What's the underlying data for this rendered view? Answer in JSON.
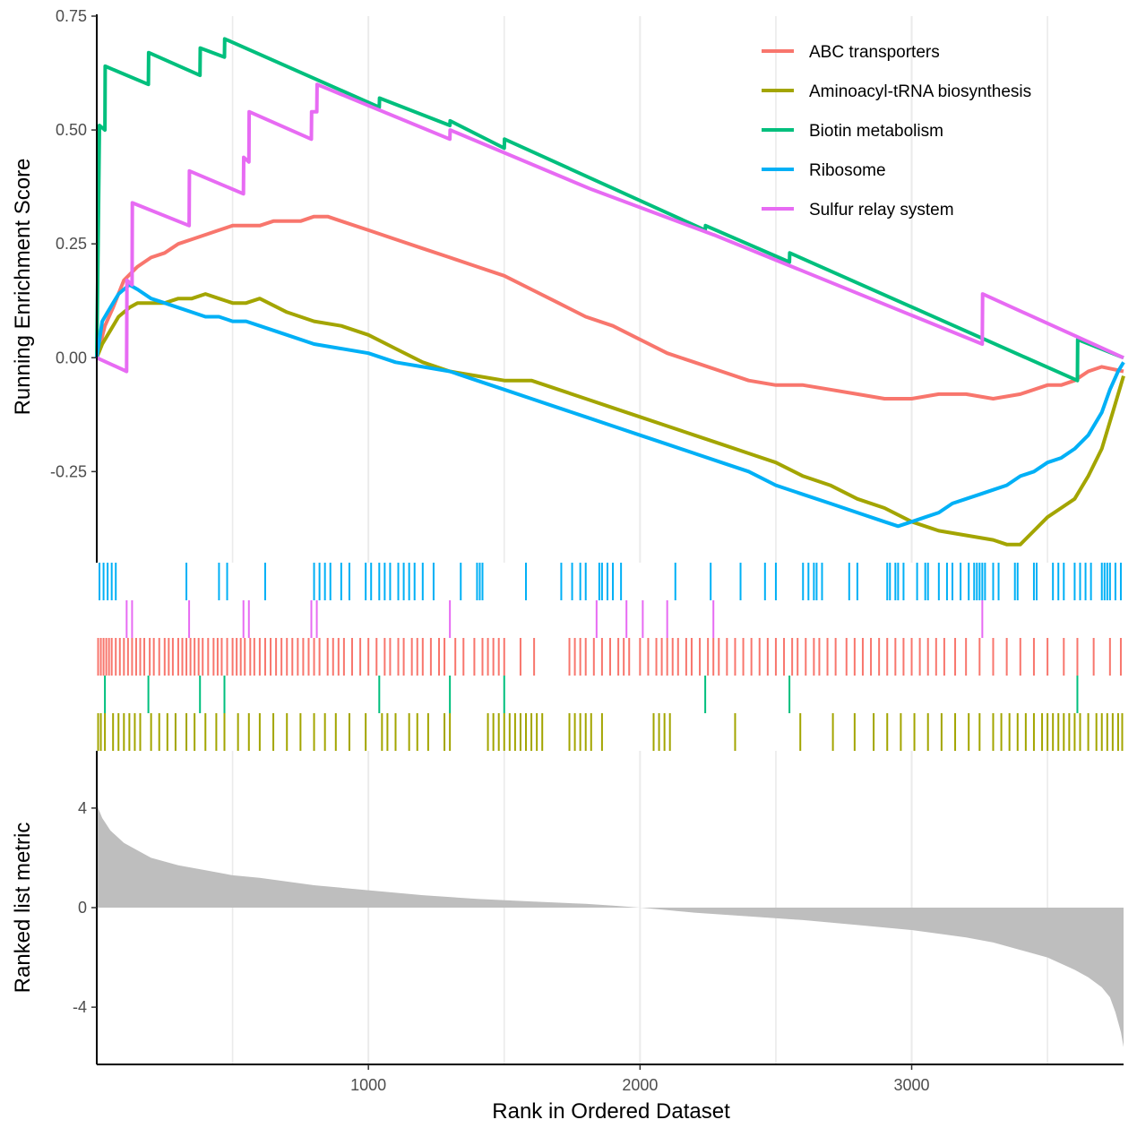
{
  "chart_data": [
    {
      "type": "line",
      "panel": "running-enrichment-score",
      "ylabel": "Running Enrichment Score",
      "ylim": [
        -0.45,
        0.75
      ],
      "yticks": [
        -0.25,
        0.0,
        0.25,
        0.5,
        0.75
      ],
      "ytick_labels": [
        "-0.25",
        "0.00",
        "0.25",
        "0.50",
        "0.75"
      ],
      "xlim": [
        0,
        3780
      ],
      "legend_position": "top-right",
      "grid": "vertical",
      "series": [
        {
          "name": "ABC transporters",
          "color": "#F8766D",
          "x": [
            0,
            30,
            60,
            100,
            150,
            200,
            250,
            300,
            350,
            400,
            450,
            500,
            550,
            600,
            650,
            700,
            750,
            800,
            850,
            900,
            1000,
            1100,
            1200,
            1300,
            1400,
            1500,
            1600,
            1700,
            1800,
            1900,
            2000,
            2100,
            2200,
            2300,
            2400,
            2500,
            2600,
            2700,
            2800,
            2900,
            3000,
            3100,
            3200,
            3300,
            3400,
            3500,
            3550,
            3600,
            3650,
            3700,
            3780
          ],
          "y": [
            0.0,
            0.07,
            0.11,
            0.17,
            0.2,
            0.22,
            0.23,
            0.25,
            0.26,
            0.27,
            0.28,
            0.29,
            0.29,
            0.29,
            0.3,
            0.3,
            0.3,
            0.31,
            0.31,
            0.3,
            0.28,
            0.26,
            0.24,
            0.22,
            0.2,
            0.18,
            0.15,
            0.12,
            0.09,
            0.07,
            0.04,
            0.01,
            -0.01,
            -0.03,
            -0.05,
            -0.06,
            -0.06,
            -0.07,
            -0.08,
            -0.09,
            -0.09,
            -0.08,
            -0.08,
            -0.09,
            -0.08,
            -0.06,
            -0.06,
            -0.05,
            -0.03,
            -0.02,
            -0.03
          ]
        },
        {
          "name": "Aminoacyl-tRNA biosynthesis",
          "color": "#A3A500",
          "x": [
            0,
            20,
            50,
            80,
            120,
            150,
            200,
            250,
            300,
            350,
            400,
            450,
            500,
            550,
            600,
            700,
            800,
            900,
            1000,
            1100,
            1200,
            1300,
            1400,
            1500,
            1600,
            1700,
            1800,
            1900,
            2000,
            2100,
            2200,
            2300,
            2400,
            2500,
            2600,
            2700,
            2800,
            2900,
            3000,
            3100,
            3200,
            3300,
            3350,
            3400,
            3450,
            3500,
            3550,
            3600,
            3650,
            3700,
            3740,
            3780
          ],
          "y": [
            0.0,
            0.03,
            0.06,
            0.09,
            0.11,
            0.12,
            0.12,
            0.12,
            0.13,
            0.13,
            0.14,
            0.13,
            0.12,
            0.12,
            0.13,
            0.1,
            0.08,
            0.07,
            0.05,
            0.02,
            -0.01,
            -0.03,
            -0.04,
            -0.05,
            -0.05,
            -0.07,
            -0.09,
            -0.11,
            -0.13,
            -0.15,
            -0.17,
            -0.19,
            -0.21,
            -0.23,
            -0.26,
            -0.28,
            -0.31,
            -0.33,
            -0.36,
            -0.38,
            -0.39,
            -0.4,
            -0.41,
            -0.41,
            -0.38,
            -0.35,
            -0.33,
            -0.31,
            -0.26,
            -0.2,
            -0.12,
            -0.04
          ]
        },
        {
          "name": "Biotin metabolism",
          "color": "#00BF7D",
          "x": [
            0,
            5,
            10,
            30,
            31,
            190,
            191,
            380,
            381,
            470,
            471,
            1040,
            1041,
            1300,
            1301,
            1500,
            1501,
            2240,
            2241,
            2550,
            2551,
            3610,
            3611,
            3780
          ],
          "y": [
            0.0,
            0.25,
            0.51,
            0.5,
            0.64,
            0.6,
            0.67,
            0.62,
            0.68,
            0.66,
            0.7,
            0.55,
            0.57,
            0.51,
            0.52,
            0.46,
            0.48,
            0.28,
            0.29,
            0.21,
            0.23,
            -0.05,
            0.04,
            0.0
          ]
        },
        {
          "name": "Ribosome",
          "color": "#00B0F6",
          "x": [
            0,
            20,
            40,
            60,
            80,
            100,
            120,
            150,
            200,
            250,
            300,
            350,
            400,
            450,
            500,
            550,
            600,
            700,
            800,
            900,
            1000,
            1100,
            1200,
            1300,
            1400,
            1500,
            1600,
            1700,
            1800,
            1900,
            2000,
            2100,
            2200,
            2300,
            2400,
            2500,
            2600,
            2700,
            2800,
            2900,
            2950,
            3000,
            3050,
            3100,
            3150,
            3200,
            3250,
            3300,
            3350,
            3400,
            3450,
            3500,
            3550,
            3600,
            3650,
            3700,
            3730,
            3760,
            3780
          ],
          "y": [
            0.0,
            0.08,
            0.1,
            0.12,
            0.14,
            0.15,
            0.16,
            0.15,
            0.13,
            0.12,
            0.11,
            0.1,
            0.09,
            0.09,
            0.08,
            0.08,
            0.07,
            0.05,
            0.03,
            0.02,
            0.01,
            -0.01,
            -0.02,
            -0.03,
            -0.05,
            -0.07,
            -0.09,
            -0.11,
            -0.13,
            -0.15,
            -0.17,
            -0.19,
            -0.21,
            -0.23,
            -0.25,
            -0.28,
            -0.3,
            -0.32,
            -0.34,
            -0.36,
            -0.37,
            -0.36,
            -0.35,
            -0.34,
            -0.32,
            -0.31,
            -0.3,
            -0.29,
            -0.28,
            -0.26,
            -0.25,
            -0.23,
            -0.22,
            -0.2,
            -0.17,
            -0.12,
            -0.07,
            -0.03,
            -0.01
          ]
        },
        {
          "name": "Sulfur relay system",
          "color": "#E76BF3",
          "x": [
            0,
            110,
            111,
            130,
            131,
            340,
            341,
            540,
            541,
            560,
            561,
            790,
            791,
            810,
            811,
            1300,
            1301,
            1820,
            1821,
            2270,
            2271,
            3260,
            3261,
            3780
          ],
          "y": [
            0.0,
            -0.03,
            0.17,
            0.16,
            0.34,
            0.29,
            0.41,
            0.36,
            0.44,
            0.43,
            0.54,
            0.48,
            0.54,
            0.54,
            0.6,
            0.48,
            0.5,
            0.37,
            0.37,
            0.27,
            0.27,
            0.03,
            0.14,
            0.0
          ]
        }
      ]
    },
    {
      "type": "rug",
      "panel": "gene-set-hits",
      "rows": [
        {
          "name": "Ribosome",
          "color": "#00B0F6",
          "positions": [
            10,
            25,
            40,
            55,
            70,
            330,
            450,
            480,
            620,
            800,
            820,
            840,
            860,
            900,
            930,
            990,
            1010,
            1040,
            1060,
            1080,
            1110,
            1130,
            1150,
            1170,
            1200,
            1240,
            1340,
            1400,
            1410,
            1420,
            1580,
            1710,
            1750,
            1780,
            1800,
            1850,
            1860,
            1880,
            1900,
            1930,
            2130,
            2260,
            2370,
            2460,
            2500,
            2600,
            2620,
            2640,
            2650,
            2670,
            2770,
            2800,
            2910,
            2920,
            2940,
            2950,
            2970,
            3020,
            3050,
            3060,
            3100,
            3130,
            3150,
            3180,
            3210,
            3230,
            3240,
            3250,
            3260,
            3270,
            3300,
            3320,
            3380,
            3390,
            3450,
            3460,
            3520,
            3540,
            3560,
            3600,
            3620,
            3640,
            3660,
            3700,
            3710,
            3720,
            3730,
            3750,
            3770
          ]
        },
        {
          "name": "Sulfur relay system",
          "color": "#E76BF3",
          "positions": [
            110,
            130,
            340,
            540,
            560,
            790,
            810,
            1300,
            1840,
            1950,
            2010,
            2100,
            2270,
            3260
          ]
        },
        {
          "name": "ABC transporters",
          "color": "#F8766D",
          "positions": [
            5,
            15,
            25,
            35,
            45,
            55,
            70,
            85,
            100,
            115,
            130,
            145,
            160,
            175,
            195,
            210,
            230,
            250,
            265,
            280,
            300,
            315,
            330,
            345,
            360,
            375,
            390,
            410,
            430,
            445,
            460,
            480,
            500,
            515,
            530,
            545,
            565,
            580,
            600,
            620,
            640,
            660,
            680,
            700,
            720,
            740,
            760,
            780,
            800,
            820,
            850,
            870,
            890,
            910,
            940,
            970,
            1000,
            1030,
            1060,
            1080,
            1110,
            1130,
            1160,
            1180,
            1200,
            1230,
            1260,
            1280,
            1320,
            1350,
            1390,
            1420,
            1440,
            1460,
            1480,
            1500,
            1560,
            1610,
            1740,
            1760,
            1780,
            1800,
            1830,
            1860,
            1890,
            1920,
            1940,
            1960,
            2000,
            2030,
            2060,
            2080,
            2100,
            2120,
            2140,
            2170,
            2190,
            2220,
            2250,
            2270,
            2290,
            2320,
            2350,
            2380,
            2410,
            2440,
            2470,
            2500,
            2530,
            2560,
            2580,
            2610,
            2640,
            2660,
            2690,
            2720,
            2760,
            2790,
            2820,
            2850,
            2880,
            2910,
            2940,
            2970,
            3000,
            3030,
            3060,
            3090,
            3120,
            3160,
            3200,
            3250,
            3300,
            3350,
            3400,
            3450,
            3500,
            3560,
            3610,
            3670,
            3730,
            3770
          ]
        },
        {
          "name": "Biotin metabolism",
          "color": "#00BF7D",
          "positions": [
            30,
            190,
            380,
            470,
            1040,
            1300,
            1500,
            2240,
            2550,
            3610
          ]
        },
        {
          "name": "Aminoacyl-tRNA biosynthesis",
          "color": "#A3A500",
          "positions": [
            5,
            15,
            30,
            60,
            80,
            100,
            120,
            140,
            160,
            200,
            230,
            260,
            290,
            330,
            360,
            400,
            440,
            470,
            520,
            560,
            600,
            650,
            700,
            750,
            800,
            840,
            880,
            930,
            990,
            1050,
            1070,
            1100,
            1150,
            1180,
            1220,
            1280,
            1300,
            1440,
            1460,
            1480,
            1500,
            1520,
            1540,
            1560,
            1580,
            1600,
            1620,
            1640,
            1740,
            1760,
            1780,
            1800,
            1820,
            1860,
            2050,
            2070,
            2090,
            2110,
            2350,
            2590,
            2710,
            2790,
            2860,
            2910,
            2960,
            3010,
            3060,
            3110,
            3160,
            3210,
            3250,
            3300,
            3330,
            3360,
            3390,
            3420,
            3450,
            3480,
            3500,
            3520,
            3540,
            3560,
            3580,
            3600,
            3620,
            3650,
            3680,
            3700,
            3720,
            3740,
            3760,
            3775
          ]
        }
      ]
    },
    {
      "type": "area",
      "panel": "ranked-list-metric",
      "ylabel": "Ranked list metric",
      "xlabel": "Rank in Ordered Dataset",
      "xlim": [
        0,
        3780
      ],
      "ylim": [
        -6.3,
        6.3
      ],
      "yticks": [
        -4,
        0,
        4
      ],
      "ytick_labels": [
        "-4",
        "0",
        "4"
      ],
      "xticks": [
        1000,
        2000,
        3000
      ],
      "xtick_labels": [
        "1000",
        "2000",
        "3000"
      ],
      "fill_color": "#BEBEBE",
      "x": [
        0,
        5,
        20,
        50,
        100,
        150,
        200,
        300,
        400,
        500,
        600,
        800,
        1000,
        1200,
        1400,
        1600,
        1800,
        1900,
        2000,
        2100,
        2200,
        2400,
        2600,
        2800,
        3000,
        3200,
        3300,
        3400,
        3500,
        3600,
        3650,
        3700,
        3730,
        3750,
        3770,
        3780
      ],
      "y": [
        4.6,
        4.0,
        3.6,
        3.1,
        2.6,
        2.3,
        2.0,
        1.7,
        1.5,
        1.3,
        1.2,
        0.9,
        0.7,
        0.5,
        0.35,
        0.25,
        0.15,
        0.08,
        0.0,
        -0.1,
        -0.2,
        -0.35,
        -0.5,
        -0.7,
        -0.9,
        -1.2,
        -1.4,
        -1.7,
        -2.0,
        -2.5,
        -2.8,
        -3.2,
        -3.6,
        -4.2,
        -5.0,
        -5.6
      ]
    }
  ]
}
